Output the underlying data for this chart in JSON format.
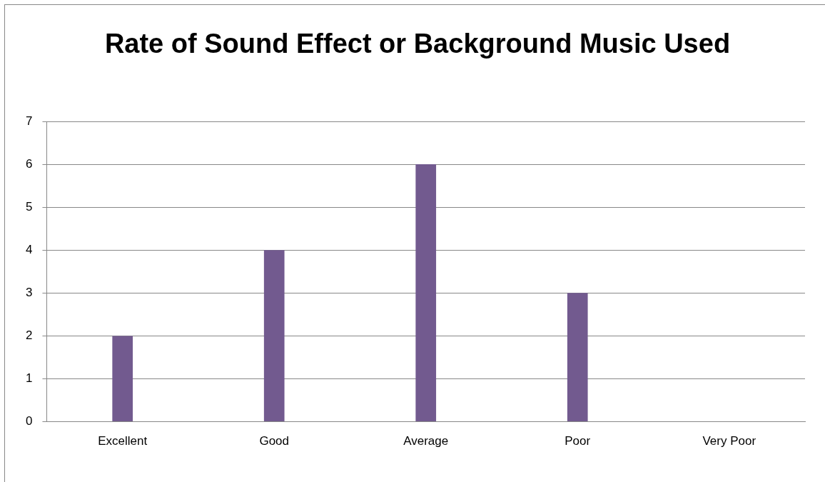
{
  "chart_data": {
    "type": "bar",
    "title": "Rate of Sound Effect or Background Music Used",
    "categories": [
      "Excellent",
      "Good",
      "Average",
      "Poor",
      "Very Poor"
    ],
    "values": [
      2,
      4,
      6,
      3,
      0
    ],
    "color": "#725a8f",
    "ylim": [
      0,
      7
    ],
    "yticks": [
      0,
      1,
      2,
      3,
      4,
      5,
      6,
      7
    ],
    "grid": "y",
    "legend": false
  }
}
